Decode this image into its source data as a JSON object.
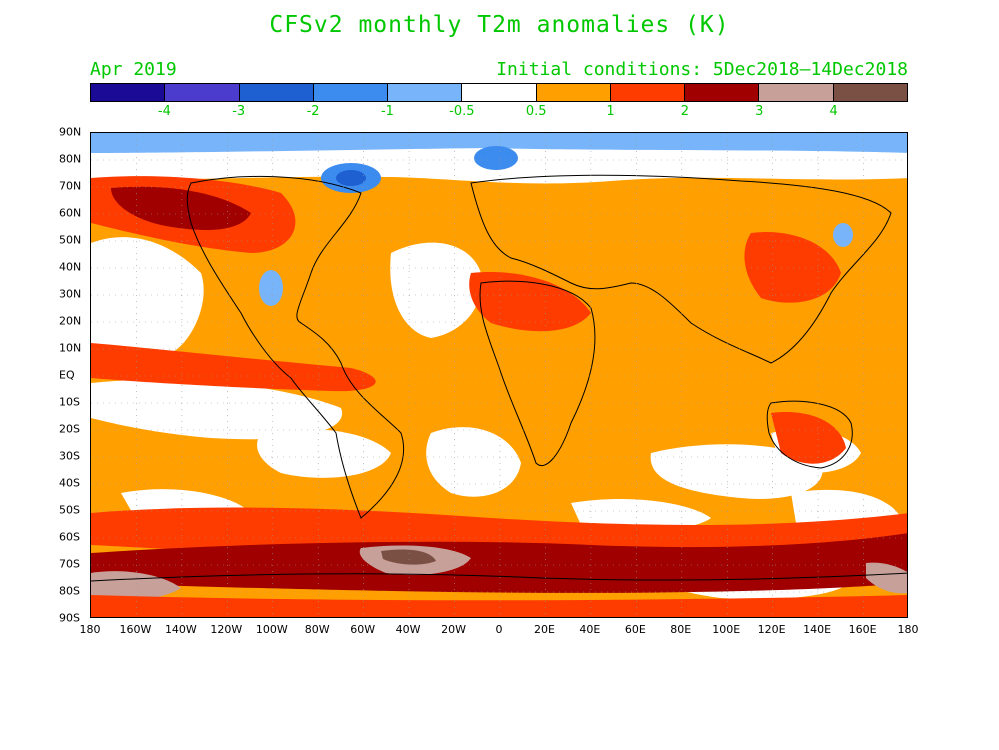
{
  "title": "CFSv2 monthly T2m anomalies (K)",
  "valid_month": "Apr 2019",
  "initial_conditions": "Initial conditions: 5Dec2018–14Dec2018",
  "colorbar": {
    "colors": [
      "#1a0a96",
      "#4b3ccd",
      "#1e5fd2",
      "#3c8cf0",
      "#78b4fa",
      "#ffffff",
      "#ffa000",
      "#ff3c00",
      "#a00000",
      "#c8a09a",
      "#7a5044"
    ],
    "labels": [
      "-4",
      "-3",
      "-2",
      "-1",
      "-0.5",
      "0.5",
      "1",
      "2",
      "3",
      "4"
    ]
  },
  "map": {
    "y_labels": [
      "90N",
      "80N",
      "70N",
      "60N",
      "50N",
      "40N",
      "30N",
      "20N",
      "10N",
      "EQ",
      "10S",
      "20S",
      "30S",
      "40S",
      "50S",
      "60S",
      "70S",
      "80S",
      "90S"
    ],
    "x_labels": [
      "180",
      "160W",
      "140W",
      "120W",
      "100W",
      "80W",
      "60W",
      "40W",
      "20W",
      "0",
      "20E",
      "40E",
      "60E",
      "80E",
      "100E",
      "120E",
      "140E",
      "160E",
      "180"
    ],
    "unit": "K"
  }
}
